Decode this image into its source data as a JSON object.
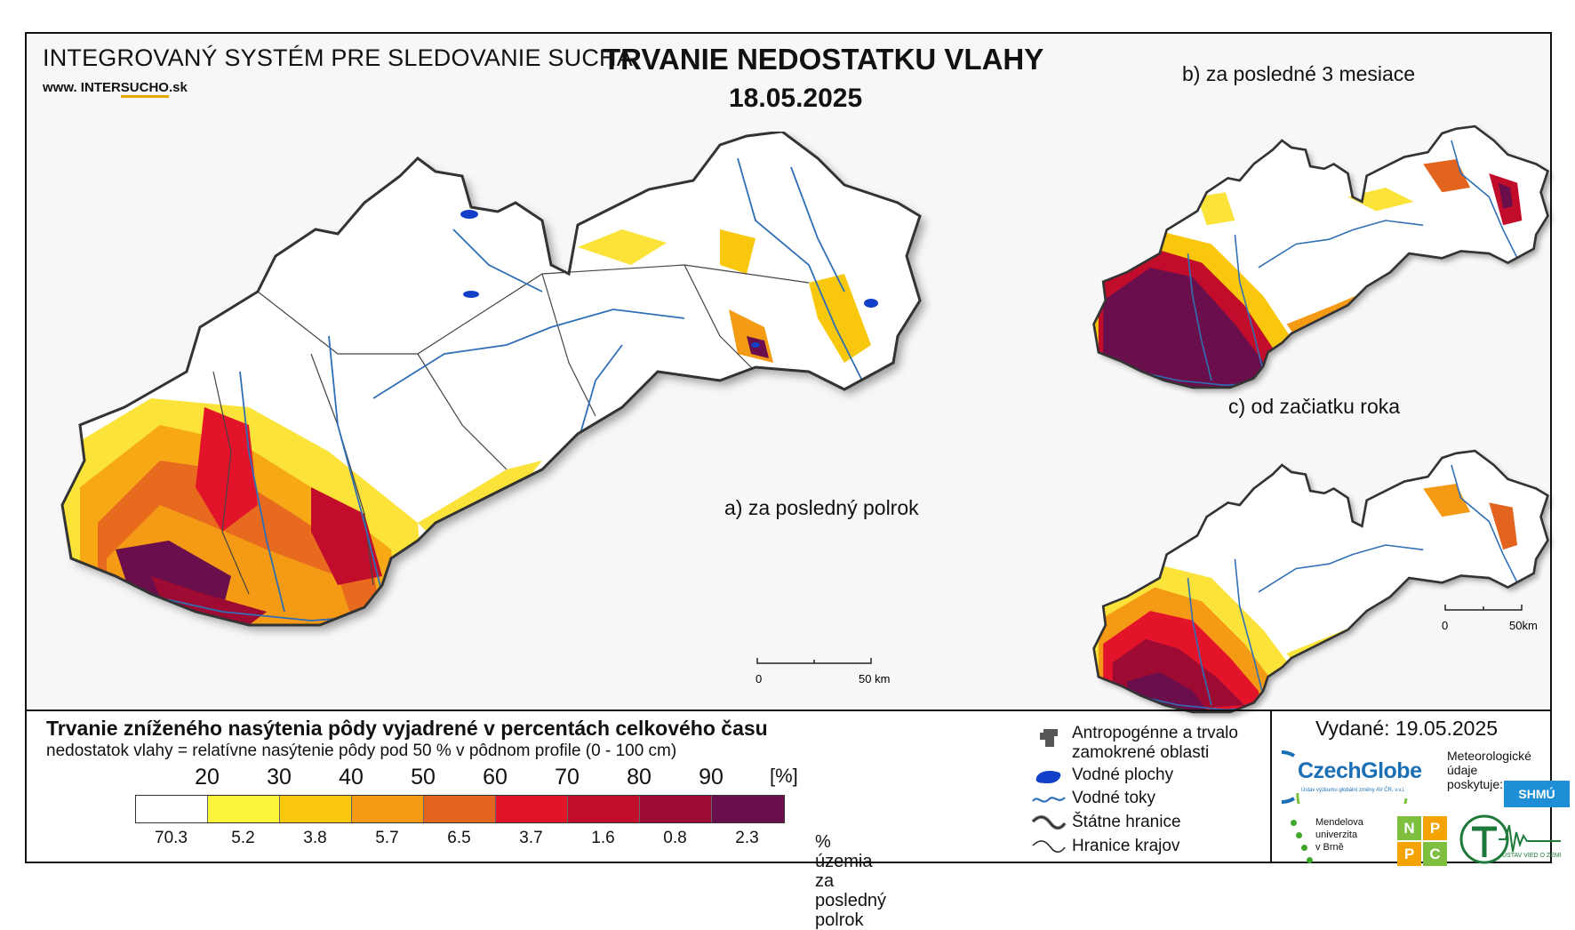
{
  "header": {
    "system_title": "INTEGROVANÝ SYSTÉM PRE SLEDOVANIE SUCHA",
    "url_prefix": "www. INTER",
    "url_highlight": "SUCHO",
    "url_suffix": ".sk",
    "main_title": "TRVANIE NEDOSTATKU VLAHY",
    "date": "18.05.2025"
  },
  "maps": {
    "a_label": "a) za posledný polrok",
    "b_label": "b) za posledné 3 mesiace",
    "c_label": "c) od začiatku roka",
    "scale_main": {
      "zero": "0",
      "end": "50 km"
    },
    "scale_small": {
      "zero": "0",
      "end": "50km"
    }
  },
  "legend": {
    "title": "Trvanie zníženého nasýtenia pôdy vyjadrené v percentách celkového času",
    "subtitle": "nedostatok vlahy = relatívne nasýtenie pôdy pod 50 % v pôdnom profile (0 - 100 cm)",
    "unit": "[%]",
    "ticks": [
      "20",
      "30",
      "40",
      "50",
      "60",
      "70",
      "80",
      "90"
    ],
    "classes": [
      {
        "color": "#ffffff",
        "pct": "70.3"
      },
      {
        "color": "#fbf43a",
        "pct": "5.2"
      },
      {
        "color": "#f9c80c",
        "pct": "3.8"
      },
      {
        "color": "#f59a14",
        "pct": "5.7"
      },
      {
        "color": "#e3641f",
        "pct": "6.5"
      },
      {
        "color": "#e3132a",
        "pct": "3.7"
      },
      {
        "color": "#c10d2b",
        "pct": "1.6"
      },
      {
        "color": "#9d0b33",
        "pct": "0.8"
      },
      {
        "color": "#6a0f4c",
        "pct": "2.3"
      }
    ],
    "pct_label_line1": "% územia",
    "pct_label_line2": "za posledný polrok"
  },
  "symbol_legend": {
    "anthropogenic": "Antropogénne a trvalo",
    "anthropogenic2": "zamokrené oblasti",
    "water_bodies": "Vodné plochy",
    "rivers": "Vodné toky",
    "state_border": "Štátne hranice",
    "region_border": "Hranice krajov"
  },
  "issuer": {
    "issued": "Vydané: 19.05.2025",
    "czechglobe": "CzechGlobe",
    "czechglobe_sub": "Ústav výzkumu globální změny AV ČR, v.v.i.",
    "meteo1": "Meteorologické",
    "meteo2": "údaje",
    "meteo3": "poskytuje:",
    "shmu": "SHMÚ",
    "mendel1": "Mendelova",
    "mendel2": "univerzita",
    "mendel3": "v Brně",
    "nppc": [
      "N",
      "P",
      "P",
      "C"
    ],
    "uvz": "ÚSTAV VIED O ZEMI"
  },
  "colors": {
    "river": "#2f6fb5",
    "lake": "#1240c8",
    "border": "#333333"
  }
}
